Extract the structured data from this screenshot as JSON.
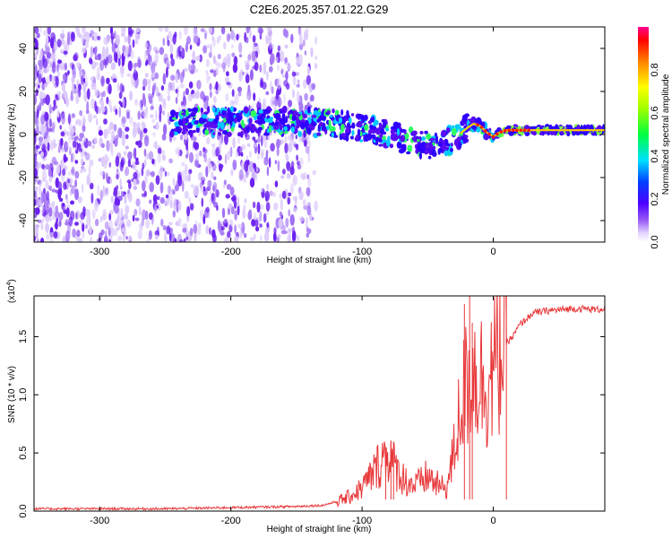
{
  "title": "C2E6.2025.357.01.22.G29",
  "chart_data": [
    {
      "type": "heatmap",
      "name": "spectrogram",
      "xlabel": "Height of straight line (km)",
      "ylabel": "Frequency (Hz)",
      "xlim": [
        -350,
        85
      ],
      "ylim": [
        -50,
        50
      ],
      "xticks": [
        -300,
        -200,
        -100,
        0
      ],
      "xtick_labels": [
        "-300",
        "-200",
        "-100",
        "0"
      ],
      "yticks": [
        -40,
        -20,
        0,
        20,
        40
      ],
      "ytick_labels": [
        "-40",
        "-20",
        "0",
        "20",
        "40"
      ],
      "colorbar": {
        "label": "Normalized spectral amplitude",
        "range": [
          0,
          1
        ],
        "ticks": [
          0.0,
          0.2,
          0.4,
          0.6,
          0.8
        ],
        "tick_labels": [
          "0.0",
          "0.2",
          "0.4",
          "0.6",
          "0.8"
        ]
      },
      "ridge": {
        "x": [
          -350,
          -300,
          -250,
          -200,
          -160,
          -120,
          -100,
          -80,
          -65,
          -50,
          -40,
          -30,
          -20,
          -15,
          -10,
          -5,
          0,
          5,
          10,
          20,
          40,
          60,
          85
        ],
        "y": [
          5,
          5,
          6,
          6,
          6,
          5,
          3,
          0,
          -3,
          -5,
          -4,
          -2,
          3,
          5,
          4,
          1,
          -1,
          1,
          2,
          2,
          2,
          2,
          2
        ]
      }
    },
    {
      "type": "line",
      "name": "snr",
      "xlabel": "Height of straight line (km)",
      "ylabel": "SNR (10 * v/v)",
      "scale_label": "(x10",
      "scale_exp": "4",
      "scale_close": ")",
      "xlim": [
        -350,
        85
      ],
      "ylim": [
        0,
        1.85
      ],
      "xticks": [
        -300,
        -200,
        -100,
        0
      ],
      "xtick_labels": [
        "-300",
        "-200",
        "-100",
        "0"
      ],
      "yticks": [
        0.0,
        0.5,
        1.0,
        1.5
      ],
      "ytick_labels": [
        "0.0",
        "0.5",
        "1.0",
        "1.5"
      ],
      "line_color": "#e8383a",
      "envelope": {
        "x": [
          -350,
          -250,
          -200,
          -150,
          -130,
          -120,
          -110,
          -100,
          -90,
          -85,
          -80,
          -75,
          -70,
          -65,
          -60,
          -55,
          -50,
          -45,
          -40,
          -35,
          -30,
          -25,
          -20,
          -15,
          -10,
          -5,
          0,
          5,
          10,
          15,
          20,
          25,
          30,
          40,
          50,
          60,
          70,
          80,
          85
        ],
        "y": [
          0.02,
          0.02,
          0.03,
          0.04,
          0.05,
          0.08,
          0.12,
          0.2,
          0.35,
          0.45,
          0.5,
          0.38,
          0.3,
          0.25,
          0.22,
          0.25,
          0.3,
          0.25,
          0.2,
          0.22,
          0.5,
          0.9,
          1.1,
          1.2,
          1.15,
          1.1,
          1.2,
          1.35,
          1.45,
          1.5,
          1.6,
          1.65,
          1.7,
          1.72,
          1.73,
          1.74,
          1.74,
          1.73,
          1.75
        ]
      },
      "spikes": {
        "x": [
          -82,
          -78,
          -76,
          -22,
          -18,
          -16,
          10
        ],
        "y": [
          0.55,
          0.6,
          0.55,
          1.78,
          1.9,
          1.62,
          1.95
        ]
      }
    }
  ]
}
